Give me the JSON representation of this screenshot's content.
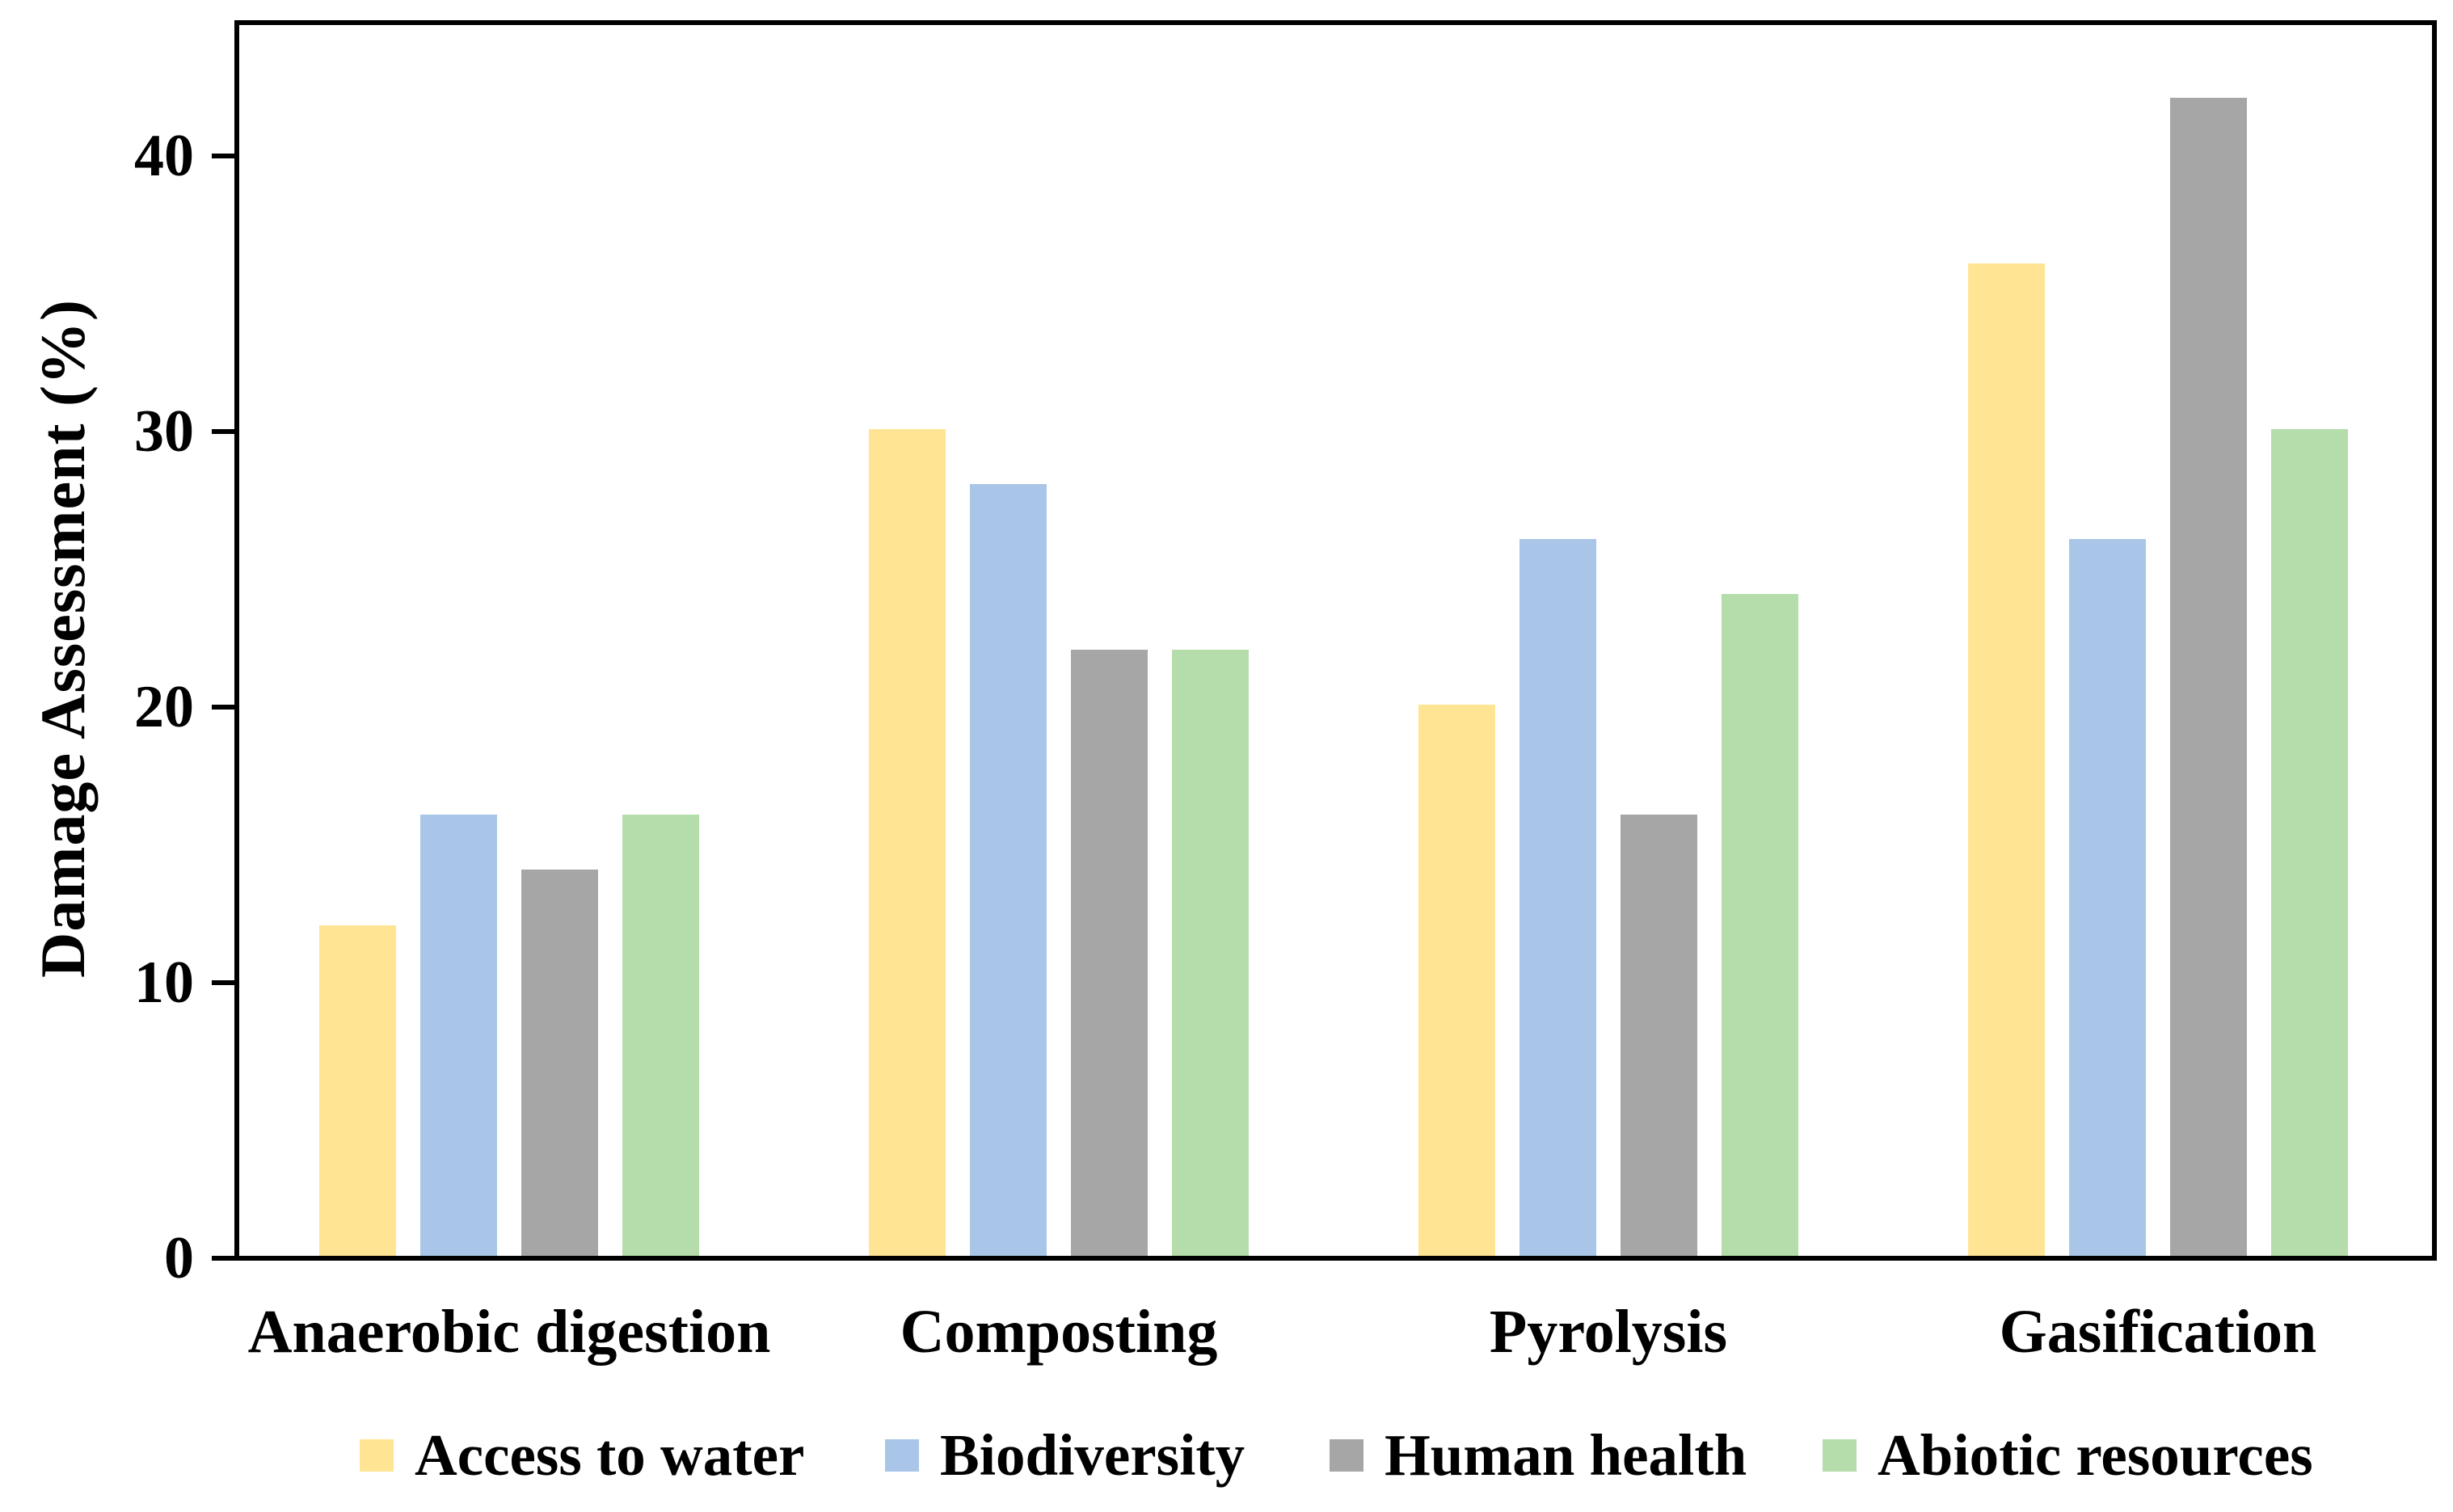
{
  "figure": {
    "background": "#ffffff",
    "text_color": "#000000"
  },
  "chart_data": {
    "type": "bar",
    "title": "",
    "xlabel": "",
    "ylabel": "Damage Assessment (%)",
    "categories": [
      "Anaerobic digestion",
      "Composting",
      "Pyrolysis",
      "Gasification"
    ],
    "series": [
      {
        "name": "Access to water",
        "color": "#FFE593",
        "values": [
          12,
          30,
          20,
          36
        ]
      },
      {
        "name": "Biodiversity",
        "color": "#A9C6E8",
        "values": [
          16,
          28,
          26,
          26
        ]
      },
      {
        "name": "Human health",
        "color": "#A6A6A6",
        "values": [
          14,
          22,
          16,
          42
        ]
      },
      {
        "name": "Abiotic resources",
        "color": "#B5DDAB",
        "values": [
          16,
          22,
          24,
          30
        ]
      }
    ],
    "ylim": [
      0,
      45
    ],
    "yticks": [
      0,
      10,
      20,
      30,
      40
    ],
    "ytick_labels": [
      "0",
      "10",
      "20",
      "30",
      "40"
    ],
    "grid": false,
    "plot_border": "full-box",
    "legend_position": "bottom"
  }
}
